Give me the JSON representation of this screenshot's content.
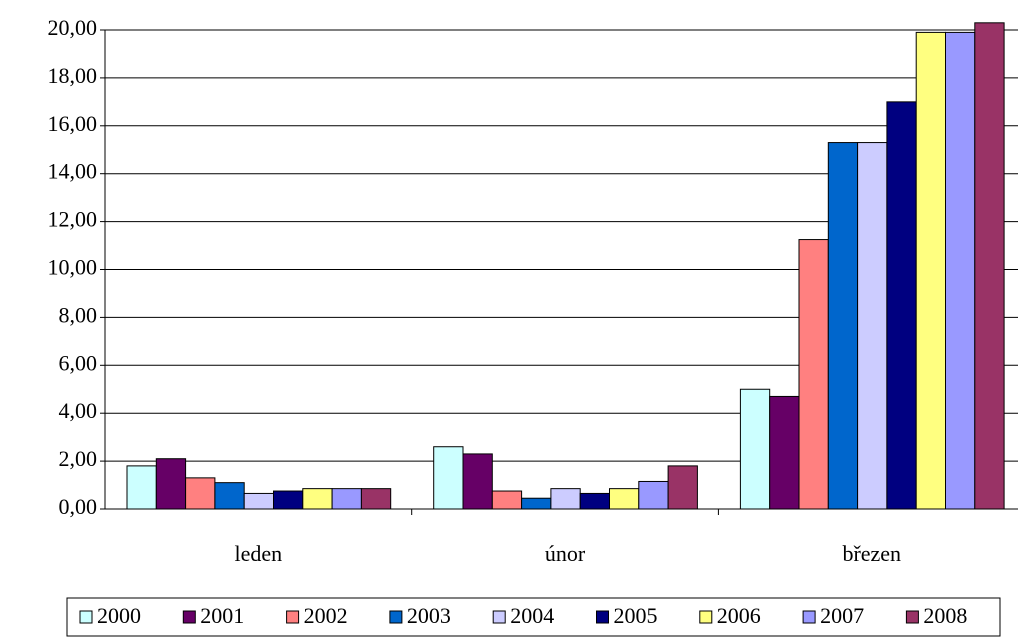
{
  "chart_data": {
    "type": "bar",
    "categories": [
      "leden",
      "únor",
      "březen"
    ],
    "series": [
      {
        "name": "2000",
        "color": "#ccffff",
        "values": [
          1.8,
          2.6,
          5.0
        ]
      },
      {
        "name": "2001",
        "color": "#660066",
        "values": [
          2.1,
          2.3,
          4.7
        ]
      },
      {
        "name": "2002",
        "color": "#ff8080",
        "values": [
          1.3,
          0.75,
          11.25
        ]
      },
      {
        "name": "2003",
        "color": "#0066cc",
        "values": [
          1.1,
          0.45,
          15.3
        ]
      },
      {
        "name": "2004",
        "color": "#ccccff",
        "values": [
          0.65,
          0.85,
          15.3
        ]
      },
      {
        "name": "2005",
        "color": "#000080",
        "values": [
          0.75,
          0.65,
          17.0
        ]
      },
      {
        "name": "2006",
        "color": "#ffff80",
        "values": [
          0.85,
          0.85,
          19.9
        ]
      },
      {
        "name": "2007",
        "color": "#9999ff",
        "values": [
          0.85,
          1.15,
          19.9
        ]
      },
      {
        "name": "2008",
        "color": "#993366",
        "values": [
          0.85,
          1.8,
          20.3
        ]
      }
    ],
    "ylim": [
      0,
      20
    ],
    "yticks": [
      {
        "value": 0,
        "label": "0,00"
      },
      {
        "value": 2,
        "label": "2,00"
      },
      {
        "value": 4,
        "label": "4,00"
      },
      {
        "value": 6,
        "label": "6,00"
      },
      {
        "value": 8,
        "label": "8,00"
      },
      {
        "value": 10,
        "label": "10,00"
      },
      {
        "value": 12,
        "label": "12,00"
      },
      {
        "value": 14,
        "label": "14,00"
      },
      {
        "value": 16,
        "label": "16,00"
      },
      {
        "value": 18,
        "label": "18,00"
      },
      {
        "value": 20,
        "label": "20,00"
      }
    ],
    "grid": true
  }
}
